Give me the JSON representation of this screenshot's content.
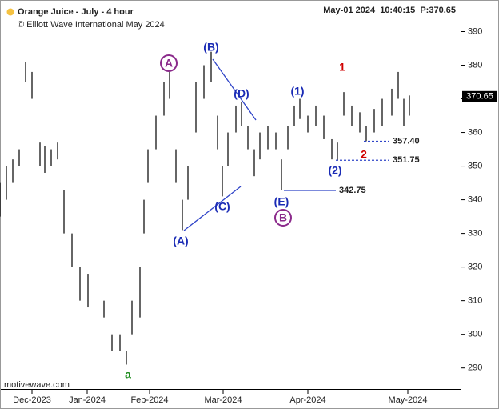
{
  "chart_data": {
    "type": "range-bar",
    "title": "Orange Juice - July - 4 hour",
    "subtitle": "© Elliott Wave International May 2024",
    "status": "May-01 2024  10:40:15  P:370.65",
    "watermark": "motivewave.com",
    "color": "#000000",
    "xlim": [
      0,
      144
    ],
    "xticks": [
      {
        "value": 10,
        "label": "Dec-2023"
      },
      {
        "value": 27.25,
        "label": "Jan-2024"
      },
      {
        "value": 46.75,
        "label": "Feb-2024"
      },
      {
        "value": 69.75,
        "label": "Mar-2024"
      },
      {
        "value": 96.25,
        "label": "Apr-2024"
      },
      {
        "value": 127.5,
        "label": "May-2024"
      }
    ],
    "ylim": [
      283.5,
      399.4
    ],
    "yticks": [
      290,
      300,
      310,
      320,
      330,
      340,
      350,
      360,
      370,
      380,
      390
    ],
    "x": [
      0,
      2,
      4,
      6,
      8,
      10,
      12.5,
      14,
      16,
      18,
      20,
      22.5,
      25,
      27.5,
      32.5,
      35,
      37.5,
      39.5,
      41.25,
      43.75,
      45,
      46.25,
      48.75,
      51.25,
      53,
      55,
      57,
      58.75,
      61.25,
      63.75,
      66,
      68,
      69.5,
      71.25,
      73.75,
      75.5,
      77.5,
      79.5,
      81.25,
      83.75,
      86.25,
      88,
      90,
      92,
      93.75,
      96.25,
      98.75,
      101.25,
      103.75,
      105.5,
      107.5,
      110,
      112.5,
      114.5,
      117,
      119.5,
      122.5,
      124.5,
      126.25,
      128
    ],
    "high": [
      345,
      350,
      352,
      355,
      381,
      378,
      357,
      356,
      355,
      357,
      343,
      330,
      320,
      318,
      310,
      300,
      300,
      295,
      310,
      320,
      340,
      355,
      365,
      375,
      378,
      355,
      340,
      350,
      375,
      380,
      384,
      365,
      350,
      360,
      368,
      369,
      362,
      355,
      360,
      362,
      360,
      352,
      362,
      368,
      370,
      365,
      368,
      365,
      358,
      357,
      372,
      368,
      366,
      362,
      367,
      370,
      373,
      378,
      370,
      371
    ],
    "low": [
      335,
      340,
      345,
      350,
      375,
      370,
      350,
      348,
      350,
      352,
      330,
      320,
      310,
      308,
      305,
      295,
      295,
      291,
      300,
      305,
      330,
      345,
      355,
      365,
      370,
      345,
      331,
      340,
      360,
      370,
      375,
      355,
      341,
      350,
      360,
      362,
      355,
      347,
      352,
      355,
      355,
      343,
      355,
      362,
      364,
      360,
      362,
      358,
      352,
      351.75,
      365,
      362,
      360,
      357.4,
      360,
      362,
      365,
      370,
      362,
      365
    ],
    "levels": [
      {
        "value": 357.4,
        "label": "357.40"
      },
      351.75,
      342.75
    ],
    "last": {
      "value": 370.65,
      "label": "370.65"
    },
    "wave_labels": [
      "A",
      "(B)",
      "(D)",
      "(1)",
      "1",
      "(A)",
      "(C)",
      "(E)",
      "B",
      "(2)",
      "2",
      "a"
    ]
  }
}
